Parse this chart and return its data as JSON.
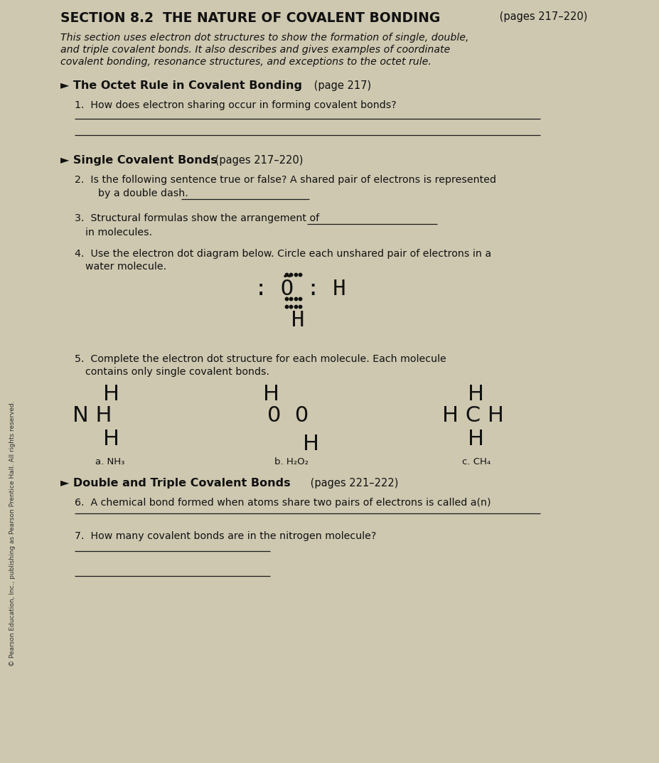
{
  "bg_color": "#cec8b0",
  "text_color": "#111111",
  "line_color": "#1a1a1a",
  "title_bold": "SECTION 8.2  THE NATURE OF COVALENT BONDING",
  "title_pages": " (pages 217–220)",
  "sub1": "This section uses electron dot structures to show the formation of single, double,",
  "sub2": "and triple covalent bonds. It also describes and gives examples of coordinate",
  "sub3": "covalent bonding, resonance structures, and exceptions to the octet rule.",
  "s1_bold": "► The Octet Rule in Covalent Bonding",
  "s1_norm": " (page 217)",
  "q1": "1.  How does electron sharing occur in forming covalent bonds?",
  "s2_bold": "► Single Covalent Bonds",
  "s2_norm": " (pages 217–220)",
  "q2a": "2.  Is the following sentence true or false? A shared pair of electrons is represented",
  "q2b": "    by a double dash. ",
  "q3a": "3.  Structural formulas show the arrangement of ",
  "q3b": "    in molecules.",
  "q4a": "4.  Use the electron dot diagram below. Circle each unshared pair of electrons in a",
  "q4b": "    water molecule.",
  "q5a": "5.  Complete the electron dot structure for each molecule. Each molecule",
  "q5b": "    contains only single covalent bonds.",
  "s3_bold": "► Double and Triple Covalent Bonds",
  "s3_norm": " (pages 221–222)",
  "q6": "6.  A chemical bond formed when atoms share two pairs of electrons is called a(n)",
  "q7": "7.  How many covalent bonds are in the nitrogen molecule?",
  "side_text": "© Pearson Education, Inc., publishing as Pearson Prentice Hall. All rights reserved."
}
